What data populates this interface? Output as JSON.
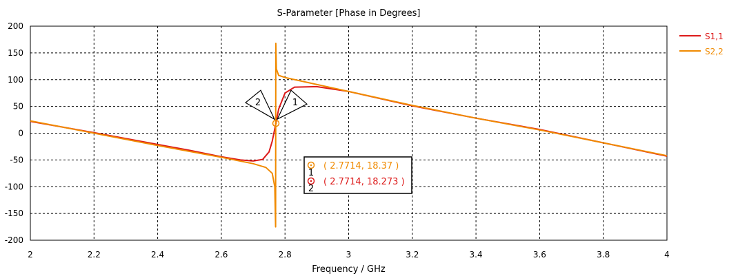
{
  "chart_data": {
    "type": "line",
    "title": "S-Parameter [Phase in Degrees]",
    "xlabel": "Frequency / GHz",
    "ylabel": "",
    "xlim": [
      2,
      4
    ],
    "ylim": [
      -200,
      200
    ],
    "x_ticks": [
      "2",
      "2.2",
      "2.4",
      "2.6",
      "2.8",
      "3",
      "3.2",
      "3.4",
      "3.6",
      "3.8",
      "4"
    ],
    "y_ticks": [
      "200",
      "150",
      "100",
      "50",
      "0",
      "-50",
      "-100",
      "-150",
      "-200"
    ],
    "grid": true,
    "legend_position": "top-right",
    "series": [
      {
        "name": "S1,1",
        "color": "#dd1a1a",
        "points": [
          [
            2.0,
            22
          ],
          [
            2.2,
            1
          ],
          [
            2.4,
            -21
          ],
          [
            2.5,
            -32
          ],
          [
            2.6,
            -44
          ],
          [
            2.66,
            -50
          ],
          [
            2.7,
            -52
          ],
          [
            2.73,
            -49
          ],
          [
            2.75,
            -35
          ],
          [
            2.76,
            -15
          ],
          [
            2.7714,
            18.273
          ],
          [
            2.78,
            45
          ],
          [
            2.8,
            75
          ],
          [
            2.83,
            86
          ],
          [
            2.9,
            87
          ],
          [
            3.0,
            78
          ],
          [
            3.2,
            51
          ],
          [
            3.4,
            28
          ],
          [
            3.6,
            7
          ],
          [
            3.8,
            -18
          ],
          [
            4.0,
            -43
          ]
        ]
      },
      {
        "name": "S2,2",
        "color": "#f08a00",
        "points": [
          [
            2.0,
            23
          ],
          [
            2.2,
            0
          ],
          [
            2.4,
            -23
          ],
          [
            2.6,
            -45
          ],
          [
            2.7,
            -57
          ],
          [
            2.74,
            -64
          ],
          [
            2.76,
            -75
          ],
          [
            2.768,
            -100
          ],
          [
            2.7705,
            -175
          ],
          [
            2.7712,
            168
          ],
          [
            2.773,
            120
          ],
          [
            2.78,
            108
          ],
          [
            2.8,
            104
          ],
          [
            3.0,
            78
          ],
          [
            3.2,
            52
          ],
          [
            3.4,
            28
          ],
          [
            3.6,
            6
          ],
          [
            3.8,
            -18
          ],
          [
            4.0,
            -42
          ]
        ]
      }
    ],
    "markers": [
      {
        "id": "1",
        "series": "S2,2",
        "x": 2.7714,
        "y": 18.37,
        "label": "( 2.7714, 18.37 )",
        "color": "#f08a00"
      },
      {
        "id": "2",
        "series": "S1,1",
        "x": 2.7714,
        "y": 18.273,
        "label": "( 2.7714, 18.273 )",
        "color": "#dd1a1a"
      }
    ]
  }
}
